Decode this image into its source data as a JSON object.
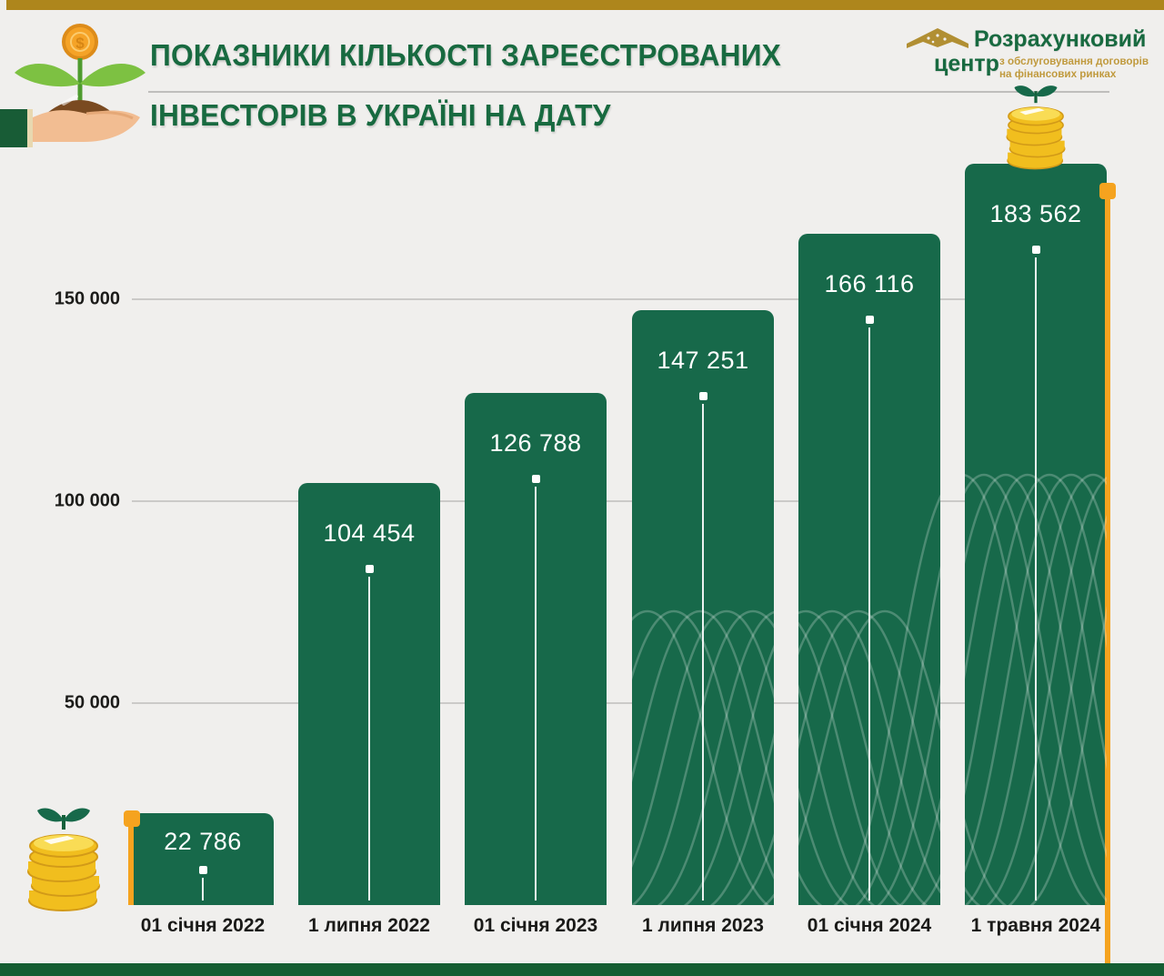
{
  "header": {
    "title_line1": "ПОКАЗНИКИ КІЛЬКОСТІ ЗАРЕЄСТРОВАНИХ",
    "title_line2": "ІНВЕСТОРІВ В УКРАЇНІ НА ДАТУ",
    "logo": {
      "name_line1": "Розрахунковий",
      "name_line2": "центр",
      "tagline_line1": "з обслуговування договорів",
      "tagline_line2": "на фінансових ринках"
    }
  },
  "chart_data": {
    "type": "bar",
    "title": "Показники кількості зареєстрованих інвесторів в Україні на дату",
    "categories": [
      "01 січня 2022",
      "1 липня 2022",
      "01 січня 2023",
      "1 липня 2023",
      "01 січня 2024",
      "1 травня 2024"
    ],
    "values": [
      22786,
      104454,
      126788,
      147251,
      166116,
      183562
    ],
    "value_labels": [
      "22 786",
      "104 454",
      "126 788",
      "147 251",
      "166 116",
      "183 562"
    ],
    "y_ticks": [
      {
        "value": 150000,
        "label": "150 000"
      },
      {
        "value": 100000,
        "label": "100 000"
      },
      {
        "value": 50000,
        "label": "50 000"
      }
    ],
    "ylim": [
      0,
      190000
    ],
    "grid": true,
    "legend_position": "none",
    "xlabel": "",
    "ylabel": "",
    "bar_color": "#17694A",
    "accent_color": "#F5A31F"
  },
  "colors": {
    "background": "#F0EFED",
    "top_bar_gold": "#AE861C",
    "footer_green": "#155E33",
    "title_green": "#186A40",
    "logo_gold_text": "#C09A3E",
    "gridline": "#CBCAC8",
    "axis_label": "#1C1C1A",
    "bar_green": "#17694A",
    "accent_orange": "#F5A31F",
    "coin_gold": "#F1BE1E"
  },
  "icons": {
    "hand_plant": "hand-plant-icon",
    "coin_stack_large": "coin-stack-icon",
    "coin_stack_small": "coin-stack-small-icon",
    "logo_emblem": "logo-emblem-icon"
  }
}
